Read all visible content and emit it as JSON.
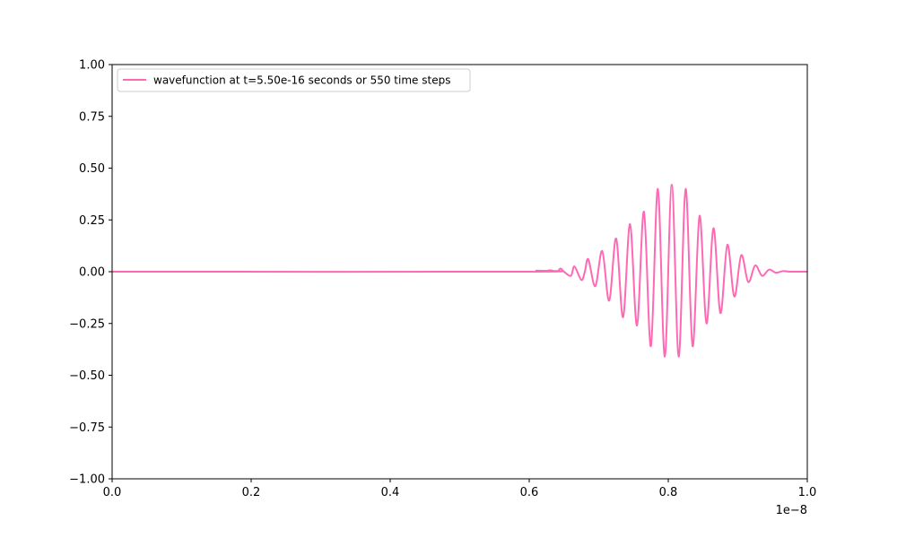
{
  "chart_data": {
    "type": "line",
    "x_offset_label": "1e−8",
    "xlim": [
      0.0,
      1.0
    ],
    "ylim": [
      -1.0,
      1.0
    ],
    "xticks": [
      "0.0",
      "0.2",
      "0.4",
      "0.6",
      "0.8",
      "1.0"
    ],
    "yticks": [
      "−1.00",
      "−0.75",
      "−0.50",
      "−0.25",
      "0.00",
      "0.25",
      "0.50",
      "0.75",
      "1.00"
    ],
    "grid": false,
    "legend_position": "top-left",
    "series": [
      {
        "name": "wavefunction at t=5.50e-16 seconds or 550 time steps",
        "color": "#ff69b4",
        "x": [
          0.0,
          0.6,
          0.61,
          0.62,
          0.63,
          0.64,
          0.645,
          0.65,
          0.66,
          0.665,
          0.675,
          0.68,
          0.685,
          0.695,
          0.705,
          0.715,
          0.725,
          0.735,
          0.745,
          0.755,
          0.765,
          0.775,
          0.785,
          0.795,
          0.805,
          0.815,
          0.825,
          0.835,
          0.845,
          0.855,
          0.865,
          0.875,
          0.885,
          0.895,
          0.905,
          0.915,
          0.925,
          0.935,
          0.945,
          0.955,
          0.965,
          0.975,
          1.0
        ],
        "y": [
          0.0,
          0.0,
          0.005,
          0.0,
          0.007,
          0.0,
          0.015,
          0.0,
          -0.02,
          0.025,
          -0.04,
          0.0,
          0.06,
          -0.07,
          0.1,
          -0.14,
          0.16,
          -0.22,
          0.23,
          -0.26,
          0.29,
          -0.36,
          0.4,
          -0.41,
          0.42,
          -0.41,
          0.4,
          -0.36,
          0.27,
          -0.25,
          0.21,
          -0.2,
          0.13,
          -0.12,
          0.08,
          -0.05,
          0.03,
          -0.02,
          0.01,
          -0.005,
          0.003,
          0.0,
          0.0
        ]
      }
    ]
  }
}
